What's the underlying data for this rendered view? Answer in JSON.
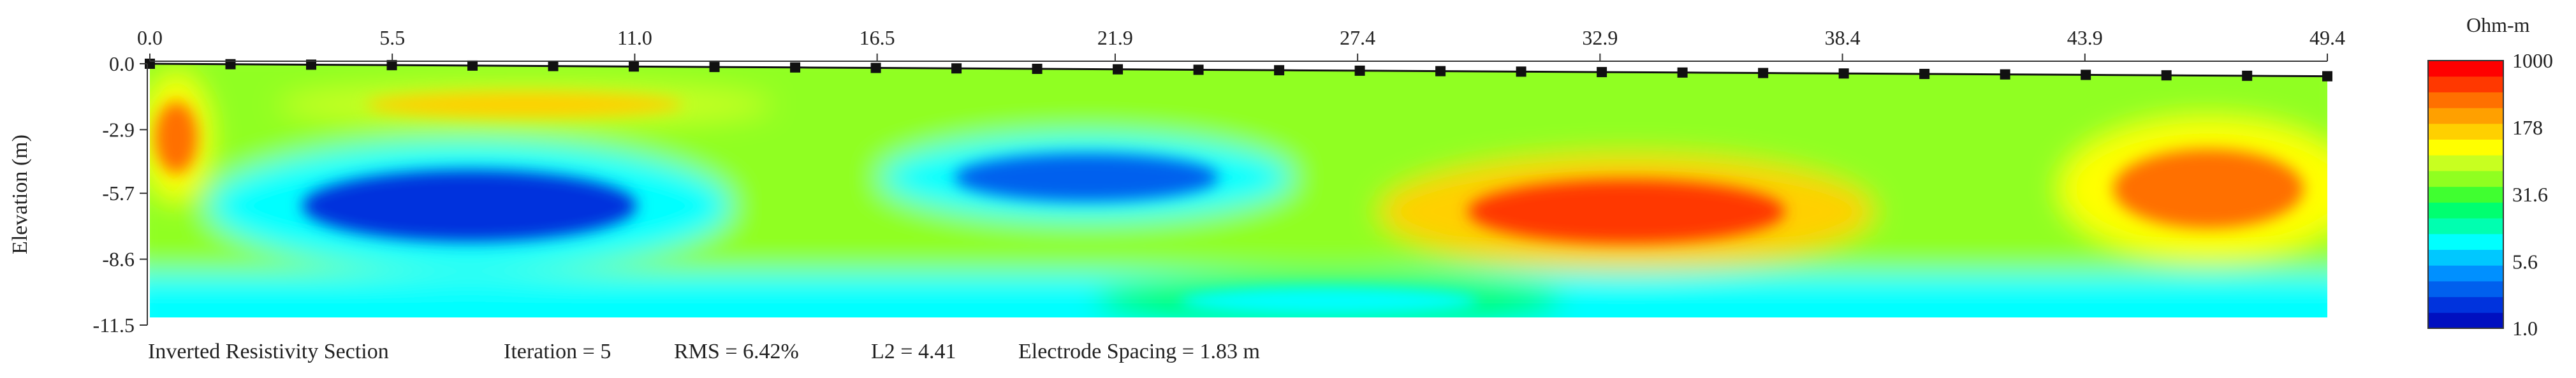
{
  "chart_data": {
    "type": "heatmap",
    "title": "Inverted Resistivity Section",
    "xlabel": "",
    "ylabel": "Elevation (m)",
    "x_ticks": [
      "0.0",
      "5.5",
      "11.0",
      "16.5",
      "21.9",
      "27.4",
      "32.9",
      "38.4",
      "43.9",
      "49.4"
    ],
    "x_tick_values": [
      0.0,
      5.5,
      11.0,
      16.5,
      21.9,
      27.4,
      32.9,
      38.4,
      43.9,
      49.4
    ],
    "xlim": [
      0,
      49.4
    ],
    "y_ticks": [
      "0.0",
      "-2.9",
      "-5.7",
      "-8.6",
      "-11.5"
    ],
    "y_tick_values": [
      0.0,
      -2.9,
      -5.7,
      -8.6,
      -11.5
    ],
    "ylim": [
      -11.5,
      0
    ],
    "electrode_spacing_m": 1.83,
    "electrode_count": 28,
    "colorbar": {
      "title": "Ohm-m",
      "scale": "log",
      "range": [
        1.0,
        1000
      ],
      "tick_labels": [
        "1000",
        "178",
        "31.6",
        "5.6",
        "1.0"
      ],
      "tick_values": [
        1000,
        178,
        31.6,
        5.6,
        1.0
      ],
      "colors": [
        "#0010c0",
        "#0033dd",
        "#0060ee",
        "#0090ff",
        "#00c8ff",
        "#00ffff",
        "#00ffb0",
        "#00ff70",
        "#40ff30",
        "#90ff20",
        "#c8ff20",
        "#ffff00",
        "#ffd000",
        "#ffa000",
        "#ff7000",
        "#ff3800",
        "#ff0000"
      ]
    },
    "annotation": {
      "title": "Inverted Resistivity Section",
      "iteration": "Iteration = 5",
      "rms": "RMS = 6.42%",
      "l2": "L2 = 4.41",
      "spacing": "Electrode Spacing = 1.83 m"
    },
    "anomalies": [
      {
        "x": [
          2.5,
          12.0
        ],
        "y": [
          -4.0,
          -8.5
        ],
        "resistivity_ohm_m": 1.5
      },
      {
        "x": [
          17.5,
          25.0
        ],
        "y": [
          -3.5,
          -6.5
        ],
        "resistivity_ohm_m": 2.0
      },
      {
        "x": [
          29.0,
          38.0
        ],
        "y": [
          -4.5,
          -8.5
        ],
        "resistivity_ohm_m": 600
      },
      {
        "x": [
          44.0,
          49.4
        ],
        "y": [
          -3.0,
          -8.0
        ],
        "resistivity_ohm_m": 500
      },
      {
        "x": [
          0.0,
          1.2
        ],
        "y": [
          -1.0,
          -5.5
        ],
        "resistivity_ohm_m": 500
      },
      {
        "x": [
          4.0,
          13.0
        ],
        "y": [
          -1.0,
          -2.6
        ],
        "resistivity_ohm_m": 200
      },
      {
        "x": [
          22.5,
          31.0
        ],
        "y": [
          -9.5,
          -11.4
        ],
        "resistivity_ohm_m": 10
      }
    ]
  }
}
